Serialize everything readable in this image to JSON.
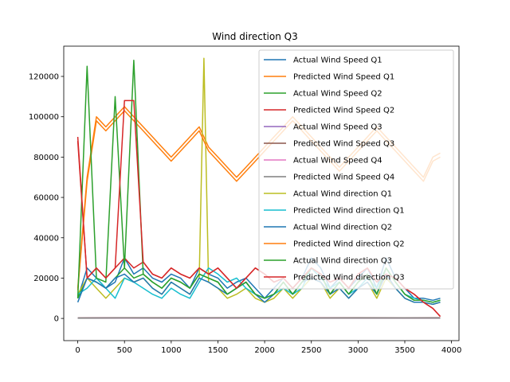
{
  "chart_data": {
    "type": "line",
    "title": "Wind direction Q3",
    "xlabel": "",
    "ylabel": "",
    "xlim": [
      -150,
      4080
    ],
    "ylim": [
      -11000,
      135000
    ],
    "xticks": [
      0,
      500,
      1000,
      1500,
      2000,
      2500,
      3000,
      3500,
      4000
    ],
    "yticks": [
      0,
      20000,
      40000,
      60000,
      80000,
      100000,
      120000
    ],
    "xtick_labels": [
      "0",
      "500",
      "1000",
      "1500",
      "2000",
      "2500",
      "3000",
      "3500",
      "4000"
    ],
    "ytick_labels": [
      "0",
      "20000",
      "40000",
      "60000",
      "80000",
      "100000",
      "120000"
    ],
    "grid": false,
    "legend_position": "top-right",
    "series": [
      {
        "name": "Actual Wind Speed Q1",
        "color": "#1f77b4",
        "x": [
          0,
          100,
          200,
          300,
          400,
          500,
          600,
          700,
          800,
          900,
          1000,
          1100,
          1200,
          1300,
          1400,
          1500,
          1600,
          1700,
          1800,
          1900,
          2000,
          2100,
          2200,
          2300,
          2400,
          2500,
          2600,
          2700,
          2800,
          2900,
          3000,
          3100,
          3200,
          3300,
          3400,
          3500,
          3600,
          3700,
          3800,
          3880
        ],
        "values": [
          10000,
          25000,
          20000,
          15000,
          18000,
          30000,
          22000,
          25000,
          20000,
          18000,
          22000,
          20000,
          15000,
          25000,
          22000,
          20000,
          15000,
          18000,
          20000,
          15000,
          10000,
          15000,
          20000,
          15000,
          20000,
          30000,
          25000,
          15000,
          20000,
          15000,
          20000,
          25000,
          15000,
          30000,
          20000,
          15000,
          10000,
          10000,
          9000,
          10000
        ]
      },
      {
        "name": "Predicted Wind Speed Q1",
        "color": "#ff7f0e",
        "x": [
          0,
          100,
          200,
          300,
          400,
          500,
          600,
          700,
          800,
          900,
          1000,
          1100,
          1200,
          1300,
          1400,
          1500,
          1600,
          1700,
          1800,
          1900,
          2000,
          2100,
          2200,
          2300,
          2400,
          2500,
          2600,
          2700,
          2800,
          2900,
          3000,
          3100,
          3200,
          3300,
          3400,
          3500,
          3600,
          3700,
          3800,
          3880
        ],
        "values": [
          15000,
          70000,
          100000,
          95000,
          100000,
          105000,
          100000,
          95000,
          90000,
          85000,
          80000,
          85000,
          90000,
          95000,
          85000,
          80000,
          75000,
          70000,
          75000,
          80000,
          85000,
          90000,
          95000,
          100000,
          95000,
          90000,
          85000,
          80000,
          75000,
          80000,
          85000,
          90000,
          95000,
          90000,
          85000,
          80000,
          75000,
          70000,
          80000,
          82000
        ]
      },
      {
        "name": "Actual Wind Speed Q2",
        "color": "#2ca02c",
        "x": [
          0,
          100,
          200,
          300,
          400,
          500,
          600,
          700,
          800,
          900,
          1000,
          1100,
          1200,
          1300,
          1400,
          1500,
          1600,
          1700,
          1800,
          1900,
          2000,
          2100,
          2200,
          2300,
          2400,
          2500,
          2600,
          2700,
          2800,
          2900,
          3000,
          3100,
          3200,
          3300,
          3400,
          3500,
          3600,
          3700,
          3800,
          3880
        ],
        "values": [
          10000,
          20000,
          18000,
          15000,
          20000,
          25000,
          20000,
          22000,
          18000,
          15000,
          20000,
          18000,
          15000,
          22000,
          20000,
          18000,
          12000,
          15000,
          18000,
          12000,
          10000,
          12000,
          18000,
          12000,
          18000,
          25000,
          22000,
          12000,
          18000,
          12000,
          18000,
          22000,
          12000,
          25000,
          18000,
          12000,
          9000,
          9000,
          8000,
          9000
        ]
      },
      {
        "name": "Predicted Wind Speed Q2",
        "color": "#d62728",
        "x": [
          0,
          100,
          200,
          300,
          400,
          500,
          600,
          700,
          800,
          900,
          1000,
          1100,
          1200,
          1300,
          1400,
          1500,
          1600,
          1700,
          1800,
          1900,
          2000,
          2100,
          2200,
          2300,
          2400,
          2500,
          2600,
          2700,
          2800,
          2900,
          3000,
          3100,
          3200,
          3300,
          3400,
          3500,
          3600,
          3700,
          3800,
          3880
        ],
        "values": [
          90000,
          20000,
          25000,
          20000,
          25000,
          30000,
          25000,
          28000,
          22000,
          20000,
          25000,
          22000,
          20000,
          25000,
          22000,
          25000,
          20000,
          15000,
          20000,
          25000,
          22000,
          18000,
          20000,
          15000,
          20000,
          25000,
          22000,
          18000,
          20000,
          15000,
          22000,
          25000,
          18000,
          22000,
          20000,
          15000,
          12000,
          8000,
          5000,
          1000
        ]
      },
      {
        "name": "Actual Wind Speed Q3",
        "color": "#9467bd",
        "x": [
          0,
          500,
          1000,
          1500,
          2000,
          2500,
          3000,
          3500,
          3880
        ],
        "values": [
          200,
          300,
          250,
          280,
          300,
          260,
          240,
          220,
          250
        ]
      },
      {
        "name": "Predicted Wind Speed Q3",
        "color": "#8c564b",
        "x": [
          0,
          500,
          1000,
          1500,
          2000,
          2500,
          3000,
          3500,
          3880
        ],
        "values": [
          250,
          350,
          300,
          320,
          340,
          300,
          280,
          260,
          290
        ]
      },
      {
        "name": "Actual Wind Speed Q4",
        "color": "#e377c2",
        "x": [
          0,
          500,
          1000,
          1500,
          2000,
          2500,
          3000,
          3500,
          3880
        ],
        "values": [
          150,
          200,
          180,
          200,
          220,
          190,
          170,
          160,
          180
        ]
      },
      {
        "name": "Predicted Wind Speed Q4",
        "color": "#7f7f7f",
        "x": [
          0,
          500,
          1000,
          1500,
          2000,
          2500,
          3000,
          3500,
          3880
        ],
        "values": [
          180,
          240,
          210,
          230,
          250,
          220,
          200,
          190,
          210
        ]
      },
      {
        "name": "Actual Wind direction Q1",
        "color": "#bcbd22",
        "x": [
          0,
          100,
          200,
          300,
          400,
          500,
          600,
          700,
          800,
          900,
          1000,
          1100,
          1200,
          1300,
          1350,
          1400,
          1500,
          1600,
          1700,
          1800,
          1900,
          2000,
          2100,
          2200,
          2300,
          2400,
          2500,
          2600,
          2700,
          2800,
          2900,
          3000,
          3100,
          3200,
          3300,
          3400,
          3500,
          3600,
          3700,
          3800,
          3880
        ],
        "values": [
          12000,
          20000,
          15000,
          10000,
          15000,
          20000,
          18000,
          20000,
          15000,
          12000,
          18000,
          15000,
          12000,
          20000,
          129000,
          18000,
          15000,
          10000,
          12000,
          15000,
          10000,
          8000,
          10000,
          15000,
          10000,
          15000,
          20000,
          18000,
          10000,
          15000,
          10000,
          15000,
          18000,
          10000,
          20000,
          15000,
          10000,
          8000,
          8000,
          7000,
          8000
        ]
      },
      {
        "name": "Predicted Wind direction Q1",
        "color": "#17becf",
        "x": [
          0,
          100,
          200,
          300,
          400,
          500,
          600,
          700,
          800,
          900,
          1000,
          1100,
          1200,
          1300,
          1400,
          1500,
          1600,
          1700,
          1800,
          1900,
          2000,
          2100,
          2200,
          2300,
          2400,
          2500,
          2600,
          2700,
          2800,
          2900,
          3000,
          3100,
          3200,
          3300,
          3400,
          3500,
          3600,
          3700,
          3800,
          3880
        ],
        "values": [
          12000,
          15000,
          20000,
          15000,
          10000,
          20000,
          18000,
          15000,
          12000,
          10000,
          15000,
          12000,
          10000,
          18000,
          25000,
          22000,
          18000,
          20000,
          15000,
          12000,
          10000,
          12000,
          15000,
          12000,
          15000,
          25000,
          20000,
          15000,
          18000,
          12000,
          15000,
          20000,
          15000,
          25000,
          18000,
          12000,
          10000,
          9000,
          8000,
          9000
        ]
      },
      {
        "name": "Actual Wind direction Q2",
        "color": "#1f77b4",
        "x": [
          0,
          100,
          200,
          300,
          400,
          500,
          600,
          700,
          800,
          900,
          1000,
          1100,
          1200,
          1300,
          1400,
          1500,
          1600,
          1700,
          1800,
          1900,
          2000,
          2100,
          2200,
          2300,
          2400,
          2500,
          2600,
          2700,
          2800,
          2900,
          3000,
          3100,
          3200,
          3300,
          3400,
          3500,
          3600,
          3700,
          3800,
          3880
        ],
        "values": [
          8000,
          20000,
          18000,
          15000,
          20000,
          22000,
          18000,
          20000,
          15000,
          12000,
          18000,
          15000,
          12000,
          20000,
          18000,
          15000,
          12000,
          15000,
          18000,
          12000,
          8000,
          12000,
          18000,
          12000,
          18000,
          20000,
          18000,
          12000,
          15000,
          10000,
          15000,
          18000,
          12000,
          22000,
          15000,
          10000,
          8000,
          8000,
          7000,
          8000
        ]
      },
      {
        "name": "Predicted Wind direction Q2",
        "color": "#ff7f0e",
        "x": [
          0,
          100,
          200,
          300,
          400,
          500,
          600,
          700,
          800,
          900,
          1000,
          1100,
          1200,
          1300,
          1400,
          1500,
          1600,
          1700,
          1800,
          1900,
          2000,
          2100,
          2200,
          2300,
          2400,
          2500,
          2600,
          2700,
          2800,
          2900,
          3000,
          3100,
          3200,
          3300,
          3400,
          3500,
          3600,
          3700,
          3800,
          3880
        ],
        "values": [
          14000,
          68000,
          98000,
          93000,
          98000,
          103000,
          98000,
          93000,
          88000,
          83000,
          78000,
          83000,
          88000,
          93000,
          83000,
          78000,
          73000,
          68000,
          73000,
          78000,
          83000,
          88000,
          93000,
          98000,
          93000,
          88000,
          83000,
          78000,
          73000,
          78000,
          83000,
          88000,
          93000,
          88000,
          83000,
          78000,
          73000,
          68000,
          78000,
          80000
        ]
      },
      {
        "name": "Actual Wind direction Q3",
        "color": "#2ca02c",
        "x": [
          0,
          100,
          200,
          300,
          400,
          500,
          600,
          700,
          800,
          900,
          1000,
          1100,
          1200,
          1300,
          1400,
          1500,
          1600,
          1700,
          1800,
          1900,
          2000,
          2100,
          2200,
          2300,
          2400,
          2500,
          2600,
          2700,
          2800,
          2900,
          3000,
          3100,
          3200,
          3300,
          3400,
          3500,
          3600,
          3700,
          3800,
          3880
        ],
        "values": [
          10000,
          125000,
          20000,
          18000,
          110000,
          25000,
          128000,
          22000,
          18000,
          15000,
          20000,
          18000,
          15000,
          22000,
          20000,
          18000,
          12000,
          15000,
          18000,
          12000,
          10000,
          12000,
          18000,
          12000,
          18000,
          25000,
          22000,
          12000,
          18000,
          12000,
          18000,
          22000,
          12000,
          25000,
          18000,
          12000,
          9000,
          9000,
          8000,
          9000
        ]
      },
      {
        "name": "Predicted Wind direction Q3",
        "color": "#d62728",
        "x": [
          0,
          100,
          200,
          300,
          400,
          500,
          600,
          700,
          800,
          900,
          1000,
          1100,
          1200,
          1300,
          1400,
          1500,
          1600,
          1700,
          1800,
          1900,
          2000,
          2100,
          2200,
          2300,
          2400,
          2500,
          2600,
          2700,
          2800,
          2900,
          3000,
          3100,
          3200,
          3300,
          3400,
          3500,
          3600,
          3700,
          3800,
          3880
        ],
        "values": [
          88000,
          20000,
          25000,
          20000,
          25000,
          108000,
          108000,
          28000,
          22000,
          20000,
          25000,
          22000,
          20000,
          25000,
          22000,
          25000,
          20000,
          15000,
          20000,
          25000,
          22000,
          18000,
          20000,
          15000,
          20000,
          25000,
          22000,
          18000,
          20000,
          15000,
          22000,
          25000,
          18000,
          22000,
          20000,
          15000,
          12000,
          8000,
          5000,
          1000
        ]
      }
    ]
  }
}
